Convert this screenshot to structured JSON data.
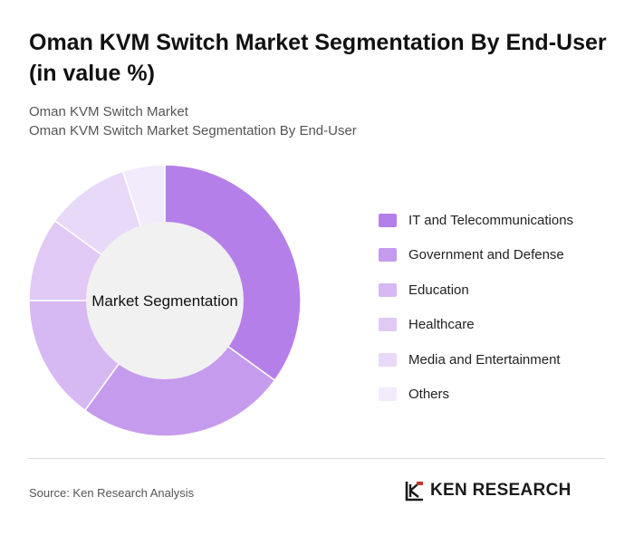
{
  "header": {
    "title": "Oman KVM Switch Market Segmentation By End-User (in value %)",
    "subtitle_line1": "Oman KVM Switch Market",
    "subtitle_line2": "Oman KVM Switch Market Segmentation By End-User"
  },
  "chart_data": {
    "type": "pie",
    "center_label": "Market Segmentation",
    "categories": [
      "IT and Telecommunications",
      "Government and Defense",
      "Education",
      "Healthcare",
      "Media and Entertainment",
      "Others"
    ],
    "values": [
      35,
      25,
      15,
      10,
      10,
      5
    ],
    "colors": [
      "#b57fe9",
      "#c59bee",
      "#d6b8f2",
      "#e0c9f5",
      "#e8d9f8",
      "#f2ebfb"
    ],
    "legend_position": "right"
  },
  "footer": {
    "source": "Source: Ken Research Analysis",
    "brand": "KEN RESEARCH"
  }
}
